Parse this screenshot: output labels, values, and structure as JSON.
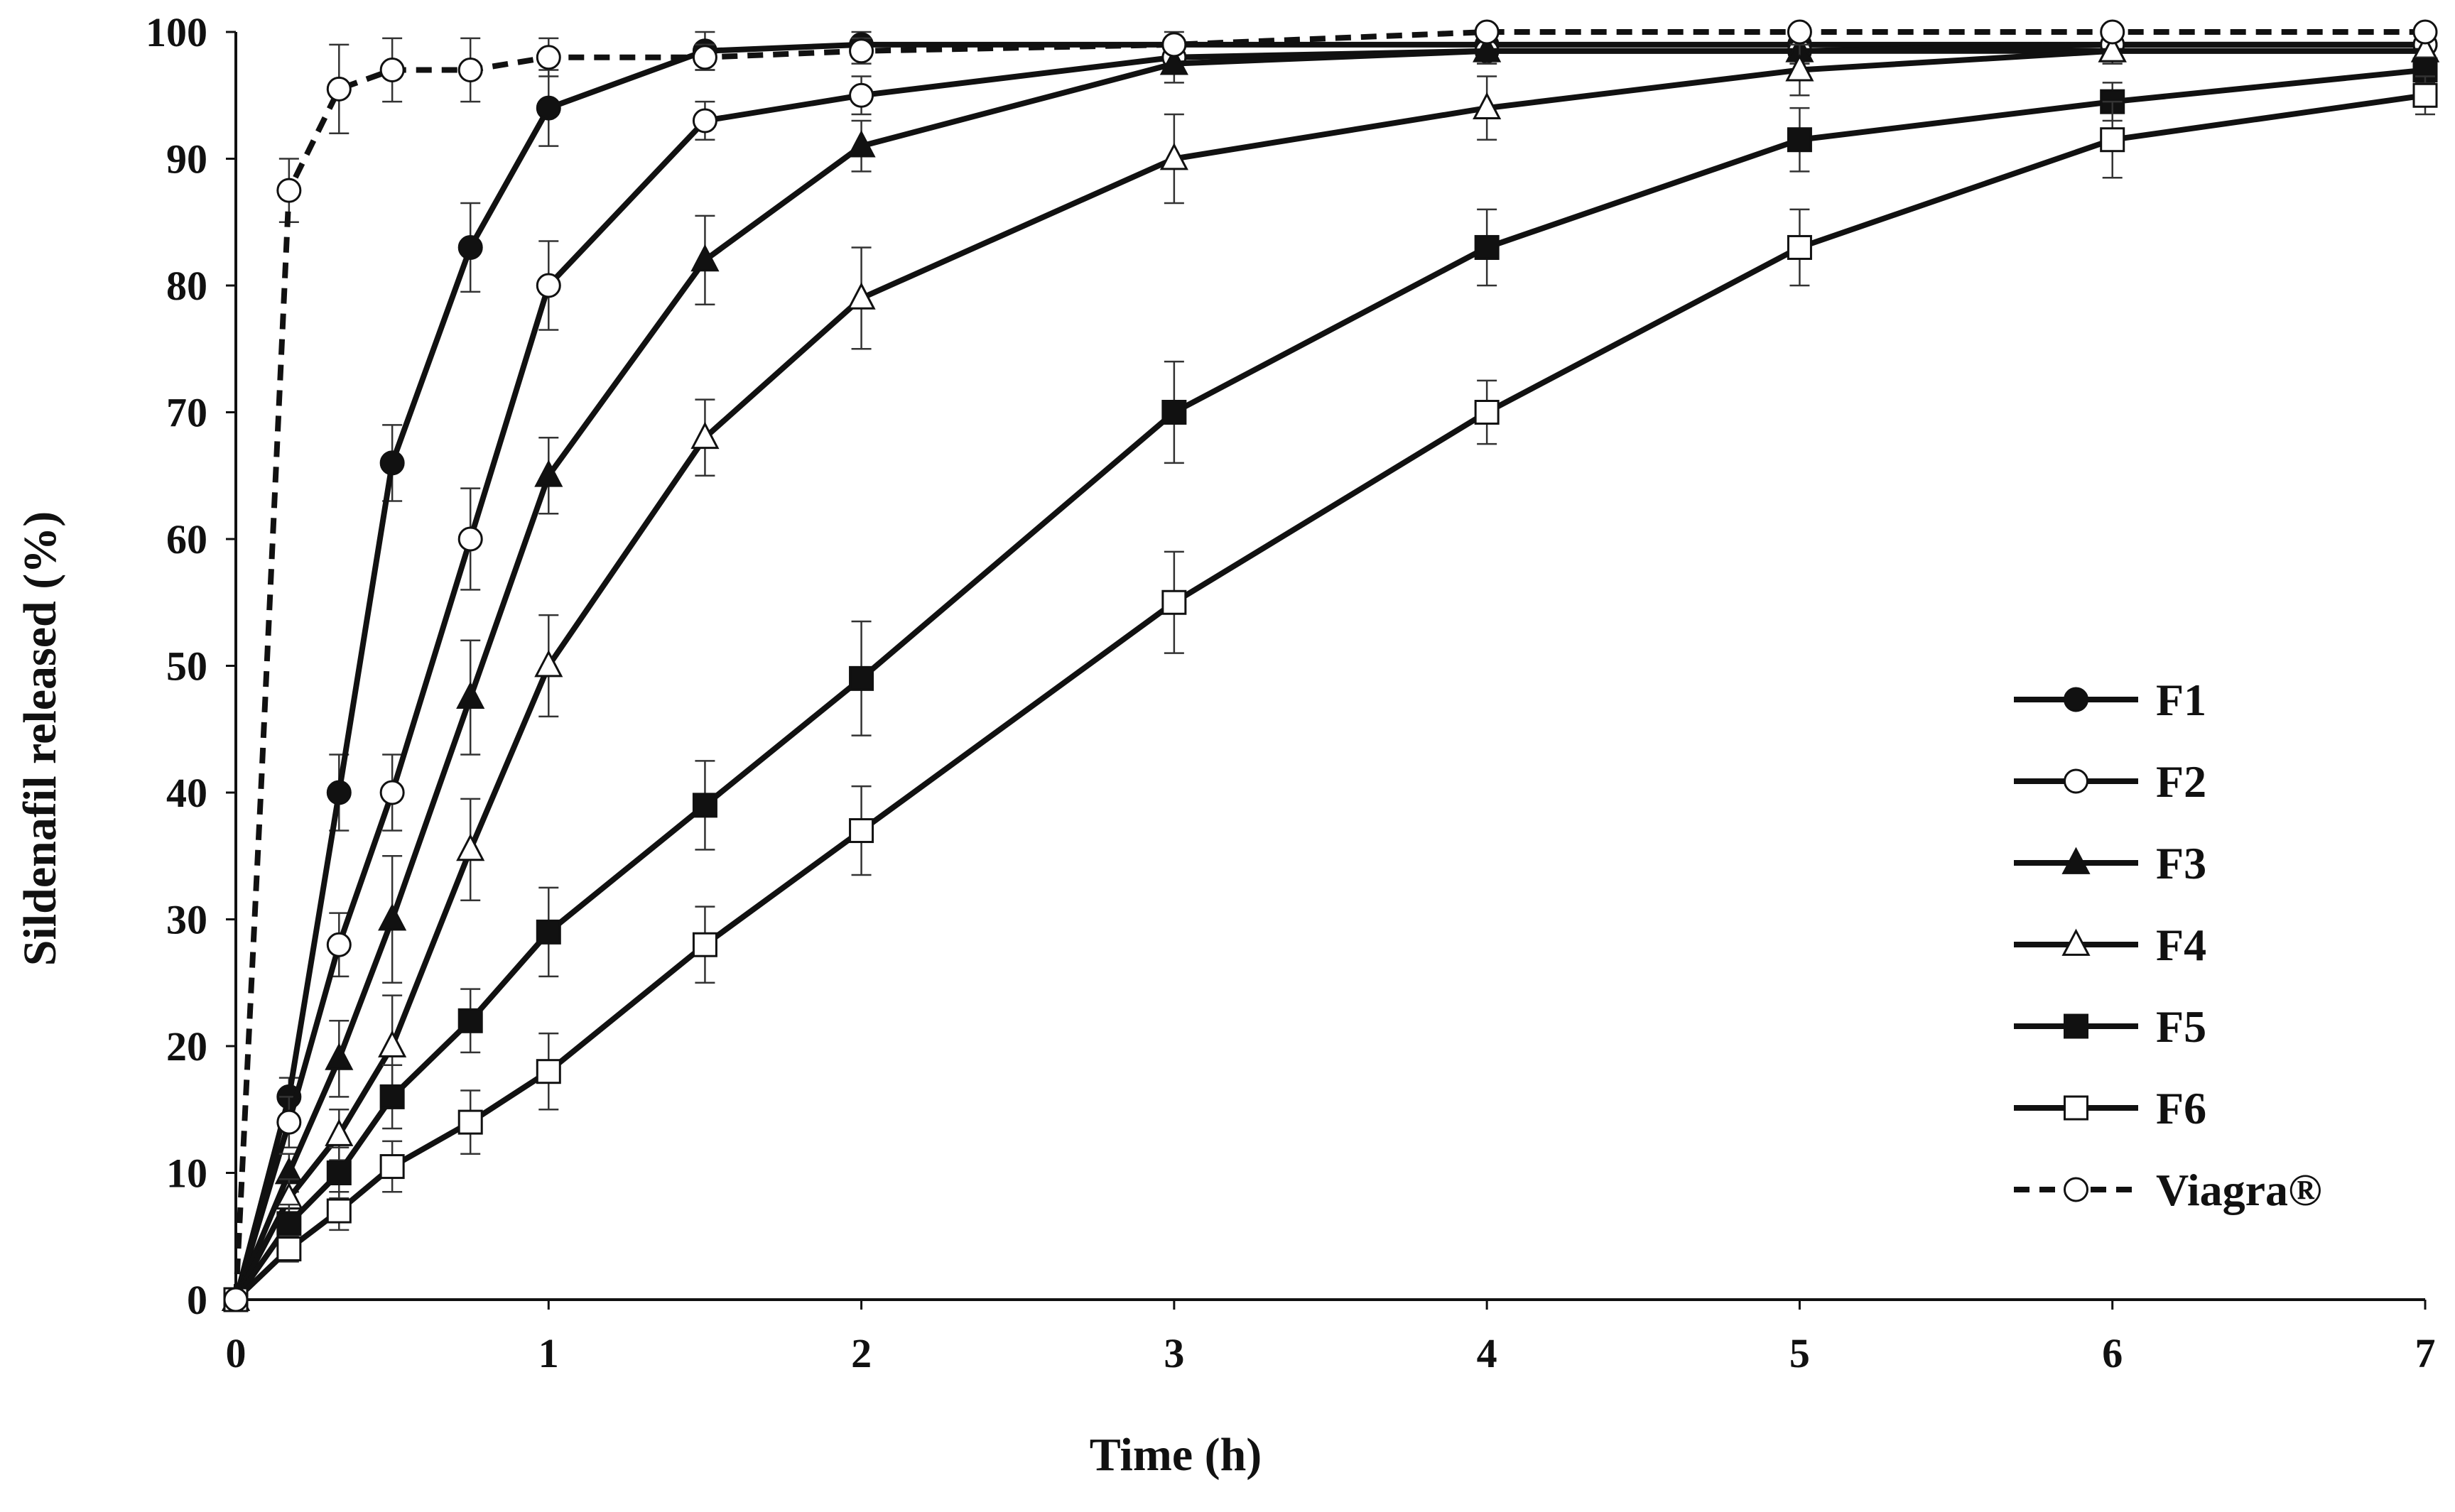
{
  "chart_data": {
    "type": "line",
    "title": "",
    "xlabel": "Time (h)",
    "ylabel": "Sildenafil  released (%)",
    "xlim": [
      0,
      7
    ],
    "ylim": [
      0,
      100
    ],
    "x_ticks": [
      "0",
      "1",
      "2",
      "3",
      "4",
      "5",
      "6",
      "7"
    ],
    "y_ticks": [
      "0",
      "10",
      "20",
      "30",
      "40",
      "50",
      "60",
      "70",
      "80",
      "90",
      "100"
    ],
    "grid": false,
    "legend_position": "bottom-right",
    "series": [
      {
        "name": "F1",
        "marker": "filled-circle",
        "dash": "solid",
        "x": [
          0,
          0.17,
          0.33,
          0.5,
          0.75,
          1,
          1.5,
          2,
          3,
          4,
          5,
          6,
          7
        ],
        "y": [
          0,
          16,
          40,
          66,
          83,
          94,
          98.5,
          99,
          99,
          99,
          99,
          99,
          99
        ],
        "err": [
          0,
          1.5,
          3,
          3,
          3.5,
          3,
          1.5,
          1,
          1,
          1,
          1,
          1,
          1
        ]
      },
      {
        "name": "F2",
        "marker": "open-circle",
        "dash": "solid",
        "x": [
          0,
          0.17,
          0.33,
          0.5,
          0.75,
          1,
          1.5,
          2,
          3,
          4,
          5,
          6,
          7
        ],
        "y": [
          0,
          14,
          28,
          40,
          60,
          80,
          93,
          95,
          98,
          98.5,
          98.5,
          99,
          99
        ],
        "err": [
          0,
          2,
          2.5,
          3,
          4,
          3.5,
          1.5,
          1.5,
          1,
          1,
          1,
          1,
          1
        ]
      },
      {
        "name": "F3",
        "marker": "filled-triangle",
        "dash": "solid",
        "x": [
          0,
          0.17,
          0.33,
          0.5,
          0.75,
          1,
          1.5,
          2,
          3,
          4,
          5,
          6,
          7
        ],
        "y": [
          0,
          10,
          19,
          30,
          47.5,
          65,
          82,
          91,
          97.5,
          98.5,
          98.5,
          98.5,
          98.5
        ],
        "err": [
          0,
          1.5,
          3,
          5,
          4.5,
          3,
          3.5,
          2,
          1.5,
          1,
          1,
          1,
          1
        ]
      },
      {
        "name": "F4",
        "marker": "open-triangle",
        "dash": "solid",
        "x": [
          0,
          0.17,
          0.33,
          0.5,
          0.75,
          1,
          1.5,
          2,
          3,
          4,
          5,
          6,
          7
        ],
        "y": [
          0,
          8,
          13,
          20,
          35.5,
          50,
          68,
          79,
          90,
          94,
          97,
          98.5,
          98.5
        ],
        "err": [
          0,
          1.5,
          2,
          4,
          4,
          4,
          3,
          4,
          3.5,
          2.5,
          2,
          1,
          1
        ]
      },
      {
        "name": "F5",
        "marker": "filled-square",
        "dash": "solid",
        "x": [
          0,
          0.17,
          0.33,
          0.5,
          0.75,
          1,
          1.5,
          2,
          3,
          4,
          5,
          6,
          7
        ],
        "y": [
          0,
          6,
          10,
          16,
          22,
          29,
          39,
          49,
          70,
          83,
          91.5,
          94.5,
          97
        ],
        "err": [
          0,
          1.5,
          2,
          2.5,
          2.5,
          3.5,
          3.5,
          4.5,
          4,
          3,
          2.5,
          1.5,
          1
        ]
      },
      {
        "name": "F6",
        "marker": "open-square",
        "dash": "solid",
        "x": [
          0,
          0.17,
          0.33,
          0.5,
          0.75,
          1,
          1.5,
          2,
          3,
          4,
          5,
          6,
          7
        ],
        "y": [
          0,
          4,
          7,
          10.5,
          14,
          18,
          28,
          37,
          55,
          70,
          83,
          91.5,
          95
        ],
        "err": [
          0,
          1,
          1.5,
          2,
          2.5,
          3,
          3,
          3.5,
          4,
          2.5,
          3,
          3,
          1.5
        ]
      },
      {
        "name": "Viagra®",
        "marker": "open-circle",
        "dash": "dashed",
        "x": [
          0,
          0.08,
          0.17,
          0.33,
          0.5,
          0.75,
          1,
          1.5,
          2,
          3,
          4,
          5,
          6,
          7
        ],
        "y": [
          0,
          40,
          87.5,
          95.5,
          97,
          97,
          98,
          98,
          98.5,
          99,
          100,
          100,
          100,
          100
        ],
        "err": [
          0,
          0,
          2.5,
          3.5,
          2.5,
          2.5,
          1.5,
          1,
          1,
          0.5,
          0.5,
          0.5,
          0.5,
          0.5
        ]
      }
    ]
  }
}
